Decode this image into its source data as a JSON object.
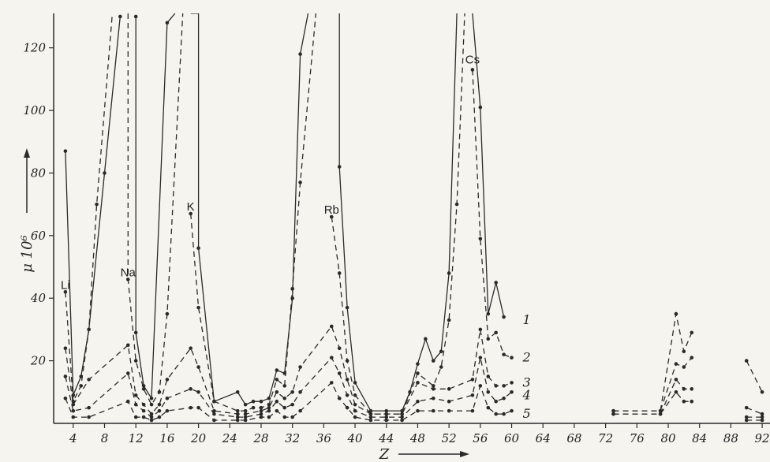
{
  "chart_data": {
    "type": "line",
    "title": "",
    "xlabel": "Z",
    "ylabel": "μ 10⁶",
    "xlim": [
      1.5,
      93
    ],
    "ylim": [
      0,
      131
    ],
    "x_ticks": [
      4,
      8,
      12,
      16,
      20,
      24,
      28,
      32,
      36,
      40,
      44,
      48,
      52,
      56,
      60,
      64,
      68,
      72,
      76,
      80,
      84,
      88,
      92
    ],
    "y_ticks": [
      20,
      40,
      60,
      80,
      100,
      120
    ],
    "grid": false,
    "legend": "curve numbers at right end",
    "element_labels": [
      {
        "text": "Li",
        "x": 3,
        "y": 42
      },
      {
        "text": "Na",
        "x": 11,
        "y": 46
      },
      {
        "text": "K",
        "x": 19,
        "y": 67
      },
      {
        "text": "Rb",
        "x": 37,
        "y": 66
      },
      {
        "text": "Cs",
        "x": 55,
        "y": 114
      }
    ],
    "series": [
      {
        "name": "1",
        "style": "solid",
        "segments": [
          [
            [
              3,
              87
            ],
            [
              4,
              9
            ],
            [
              5,
              15
            ],
            [
              6,
              30
            ],
            [
              8,
              80
            ],
            [
              10,
              130
            ]
          ],
          [
            [
              12,
              130
            ],
            [
              12,
              29
            ],
            [
              13,
              12
            ],
            [
              14,
              8
            ],
            [
              16,
              128
            ],
            [
              17,
              131
            ]
          ],
          [
            [
              19,
              131
            ],
            [
              20,
              131
            ],
            [
              20,
              56
            ],
            [
              22,
              7
            ],
            [
              25,
              10
            ],
            [
              26,
              6
            ],
            [
              27,
              7
            ],
            [
              28,
              7
            ],
            [
              29,
              8
            ],
            [
              30,
              17
            ],
            [
              31,
              16
            ],
            [
              32,
              40
            ],
            [
              33,
              118
            ],
            [
              34,
              131
            ]
          ],
          [
            [
              38,
              131
            ],
            [
              38,
              82
            ],
            [
              39,
              37
            ],
            [
              40,
              13
            ],
            [
              42,
              4
            ],
            [
              44,
              4
            ],
            [
              46,
              4
            ],
            [
              47,
              10
            ],
            [
              48,
              19
            ],
            [
              49,
              27
            ],
            [
              50,
              20
            ],
            [
              51,
              23
            ],
            [
              52,
              48
            ],
            [
              53,
              131
            ]
          ],
          [
            [
              55,
              131
            ],
            [
              56,
              101
            ],
            [
              57,
              35
            ],
            [
              58,
              45
            ],
            [
              59,
              34
            ]
          ]
        ]
      },
      {
        "name": "2",
        "style": "dashed",
        "segments": [
          [
            [
              3,
              42
            ],
            [
              4,
              7
            ],
            [
              5,
              12
            ],
            [
              6,
              30
            ],
            [
              7,
              70
            ],
            [
              9,
              131
            ]
          ],
          [
            [
              11,
              131
            ],
            [
              11,
              46
            ],
            [
              12,
              20
            ],
            [
              13,
              11
            ],
            [
              14,
              6
            ],
            [
              15,
              10
            ],
            [
              16,
              35
            ],
            [
              18,
              131
            ]
          ],
          [
            [
              19,
              67
            ],
            [
              20,
              37
            ],
            [
              22,
              7
            ],
            [
              25,
              4
            ],
            [
              26,
              4
            ],
            [
              27,
              5
            ],
            [
              28,
              5
            ],
            [
              29,
              6
            ],
            [
              30,
              14
            ],
            [
              31,
              12
            ],
            [
              32,
              43
            ],
            [
              33,
              77
            ],
            [
              35,
              131
            ]
          ],
          [
            [
              37,
              66
            ],
            [
              38,
              48
            ],
            [
              39,
              20
            ],
            [
              40,
              9
            ],
            [
              42,
              3
            ],
            [
              44,
              3
            ],
            [
              46,
              3
            ],
            [
              48,
              16
            ],
            [
              50,
              12
            ],
            [
              51,
              18
            ],
            [
              52,
              33
            ],
            [
              53,
              70
            ],
            [
              54,
              131
            ]
          ],
          [
            [
              55,
              113
            ],
            [
              56,
              59
            ],
            [
              57,
              27
            ],
            [
              58,
              29
            ],
            [
              59,
              22
            ],
            [
              60,
              21
            ]
          ],
          [
            [
              73,
              4
            ],
            [
              79,
              4
            ],
            [
              81,
              35
            ],
            [
              82,
              23
            ],
            [
              83,
              29
            ]
          ],
          [
            [
              90,
              20
            ],
            [
              92,
              10
            ]
          ]
        ]
      },
      {
        "name": "3",
        "style": "dashed",
        "segments": [
          [
            [
              3,
              24
            ],
            [
              4,
              6
            ],
            [
              6,
              14
            ],
            [
              11,
              25
            ],
            [
              12,
              9
            ],
            [
              13,
              6
            ],
            [
              14,
              3
            ],
            [
              15,
              6
            ],
            [
              16,
              14
            ],
            [
              19,
              24
            ],
            [
              20,
              18
            ],
            [
              22,
              4
            ],
            [
              25,
              3
            ],
            [
              26,
              3
            ],
            [
              28,
              4
            ],
            [
              29,
              5
            ],
            [
              30,
              10
            ],
            [
              31,
              8
            ],
            [
              32,
              10
            ],
            [
              33,
              18
            ],
            [
              37,
              31
            ],
            [
              38,
              24
            ],
            [
              39,
              14
            ],
            [
              40,
              6
            ],
            [
              42,
              3
            ],
            [
              44,
              3
            ],
            [
              46,
              3
            ],
            [
              48,
              13
            ],
            [
              50,
              11
            ],
            [
              52,
              11
            ],
            [
              55,
              14
            ],
            [
              56,
              30
            ],
            [
              57,
              15
            ],
            [
              58,
              12
            ],
            [
              59,
              12
            ],
            [
              60,
              13
            ]
          ],
          [
            [
              73,
              4
            ],
            [
              79,
              4
            ],
            [
              81,
              19
            ],
            [
              82,
              18
            ],
            [
              83,
              21
            ]
          ],
          [
            [
              90,
              5
            ],
            [
              92,
              3
            ]
          ]
        ]
      },
      {
        "name": "4",
        "style": "dashed",
        "segments": [
          [
            [
              3,
              15
            ],
            [
              4,
              4
            ],
            [
              6,
              5
            ],
            [
              11,
              16
            ],
            [
              12,
              6
            ],
            [
              13,
              4
            ],
            [
              14,
              2
            ],
            [
              15,
              4
            ],
            [
              16,
              8
            ],
            [
              19,
              11
            ],
            [
              20,
              10
            ],
            [
              22,
              3
            ],
            [
              25,
              2
            ],
            [
              26,
              2
            ],
            [
              28,
              3
            ],
            [
              29,
              4
            ],
            [
              30,
              7
            ],
            [
              31,
              5
            ],
            [
              32,
              6
            ],
            [
              33,
              10
            ],
            [
              37,
              21
            ],
            [
              38,
              16
            ],
            [
              39,
              9
            ],
            [
              40,
              4
            ],
            [
              42,
              2
            ],
            [
              44,
              2
            ],
            [
              46,
              2
            ],
            [
              48,
              7
            ],
            [
              50,
              8
            ],
            [
              52,
              7
            ],
            [
              55,
              9
            ],
            [
              56,
              21
            ],
            [
              57,
              10
            ],
            [
              58,
              7
            ],
            [
              59,
              8
            ],
            [
              60,
              10
            ]
          ],
          [
            [
              73,
              3
            ],
            [
              79,
              3
            ],
            [
              81,
              14
            ],
            [
              82,
              11
            ],
            [
              83,
              11
            ]
          ],
          [
            [
              90,
              2
            ],
            [
              92,
              2
            ]
          ]
        ]
      },
      {
        "name": "5",
        "style": "dashed",
        "segments": [
          [
            [
              3,
              8
            ],
            [
              4,
              2
            ],
            [
              6,
              2
            ],
            [
              11,
              7
            ],
            [
              12,
              2
            ],
            [
              13,
              2
            ],
            [
              14,
              1
            ],
            [
              15,
              2
            ],
            [
              16,
              4
            ],
            [
              19,
              5
            ],
            [
              20,
              5
            ],
            [
              22,
              1
            ],
            [
              25,
              1
            ],
            [
              26,
              1
            ],
            [
              28,
              2
            ],
            [
              29,
              2
            ],
            [
              30,
              4
            ],
            [
              31,
              2
            ],
            [
              32,
              2
            ],
            [
              33,
              4
            ],
            [
              37,
              13
            ],
            [
              38,
              8
            ],
            [
              39,
              5
            ],
            [
              40,
              2
            ],
            [
              42,
              1
            ],
            [
              44,
              1
            ],
            [
              46,
              1
            ],
            [
              48,
              4
            ],
            [
              50,
              4
            ],
            [
              52,
              4
            ],
            [
              55,
              4
            ],
            [
              56,
              12
            ],
            [
              57,
              5
            ],
            [
              58,
              3
            ],
            [
              59,
              3
            ],
            [
              60,
              4
            ]
          ],
          [
            [
              73,
              3
            ],
            [
              79,
              3
            ],
            [
              81,
              10
            ],
            [
              82,
              7
            ],
            [
              83,
              7
            ]
          ],
          [
            [
              90,
              1
            ],
            [
              92,
              1
            ]
          ]
        ]
      }
    ],
    "curve_label_positions": [
      {
        "name": "1",
        "x": 61,
        "y": 33
      },
      {
        "name": "2",
        "x": 61,
        "y": 21
      },
      {
        "name": "3",
        "x": 61,
        "y": 13
      },
      {
        "name": "4",
        "x": 61,
        "y": 9
      },
      {
        "name": "5",
        "x": 61,
        "y": 3
      }
    ]
  }
}
